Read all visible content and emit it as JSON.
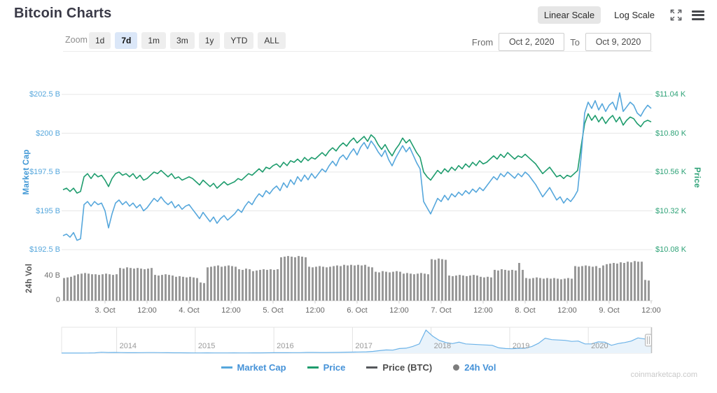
{
  "header": {
    "title": "Bitcoin Charts",
    "linear_scale_label": "Linear Scale",
    "log_scale_label": "Log Scale",
    "icons": [
      {
        "name": "fullscreen-icon"
      },
      {
        "name": "menu-icon"
      }
    ]
  },
  "toolbar": {
    "zoom_label": "Zoom",
    "ranges": [
      {
        "label": "1d",
        "active": false
      },
      {
        "label": "7d",
        "active": true
      },
      {
        "label": "1m",
        "active": false
      },
      {
        "label": "3m",
        "active": false
      },
      {
        "label": "1y",
        "active": false
      },
      {
        "label": "YTD",
        "active": false
      },
      {
        "label": "ALL",
        "active": false
      }
    ],
    "from_label": "From",
    "from_value": "Oct 2, 2020",
    "to_label": "To",
    "to_value": "Oct 9, 2020"
  },
  "legend": {
    "items": [
      {
        "label": "Market Cap",
        "type": "line",
        "color": "#56a7dc",
        "label_color": "#4592d8"
      },
      {
        "label": "Price",
        "type": "line",
        "color": "#1e9c6d",
        "label_color": "#4592d8"
      },
      {
        "label": "Price (BTC)",
        "type": "line",
        "color": "#55575b",
        "label_color": "#4d4d4d"
      },
      {
        "label": "24h Vol",
        "type": "dot",
        "color": "#7d7d7d",
        "label_color": "#4592d8"
      }
    ]
  },
  "watermark": "coinmarketcap.com",
  "chart_data": {
    "type": "line",
    "title": "Bitcoin Charts",
    "x_range": [
      "Oct 2, 2020",
      "Oct 9, 2020"
    ],
    "axes": {
      "market_cap": {
        "title": "Market Cap",
        "tick_labels": [
          "$202.5 B",
          "$200 B",
          "$197.5 B",
          "$195 B",
          "$192.5 B"
        ],
        "tick_values": [
          202.5,
          200,
          197.5,
          195,
          192.5
        ]
      },
      "price": {
        "title": "Price",
        "tick_labels": [
          "$11.04 K",
          "$10.80 K",
          "$10.56 K",
          "$10.32 K",
          "$10.08 K"
        ],
        "tick_values": [
          11.04,
          10.8,
          10.56,
          10.32,
          10.08
        ]
      },
      "volume": {
        "title": "24h Vol",
        "tick_labels": [
          "40 B",
          "0"
        ],
        "tick_values": [
          40,
          0
        ]
      },
      "x": {
        "tick_labels": [
          "3. Oct",
          "12:00",
          "4. Oct",
          "12:00",
          "5. Oct",
          "12:00",
          "6. Oct",
          "12:00",
          "7. Oct",
          "12:00",
          "8. Oct",
          "12:00",
          "9. Oct",
          "12:00"
        ]
      }
    },
    "series": [
      {
        "name": "Market Cap",
        "unit": "$B",
        "color": "#56a7dc",
        "values": [
          193.4,
          193.5,
          193.3,
          193.6,
          193.1,
          193.2,
          195.4,
          195.6,
          195.3,
          195.6,
          195.4,
          195.5,
          195.0,
          193.9,
          194.8,
          195.5,
          195.7,
          195.4,
          195.6,
          195.3,
          195.5,
          195.2,
          195.4,
          195.0,
          195.2,
          195.5,
          195.8,
          195.6,
          195.9,
          195.6,
          195.4,
          195.6,
          195.2,
          195.4,
          195.1,
          195.3,
          195.4,
          195.1,
          194.8,
          194.5,
          194.9,
          194.6,
          194.3,
          194.6,
          194.2,
          194.5,
          194.7,
          194.4,
          194.6,
          194.8,
          195.1,
          194.9,
          195.3,
          195.6,
          195.4,
          195.8,
          196.1,
          195.9,
          196.3,
          196.1,
          196.4,
          196.6,
          196.3,
          196.8,
          196.5,
          197.0,
          196.7,
          197.2,
          196.9,
          197.3,
          197.0,
          197.4,
          197.1,
          197.4,
          197.7,
          197.5,
          197.9,
          198.2,
          197.9,
          198.4,
          198.6,
          198.3,
          198.7,
          199.0,
          198.6,
          199.1,
          199.4,
          199.0,
          199.5,
          199.2,
          198.8,
          198.5,
          198.9,
          198.3,
          197.9,
          198.4,
          198.8,
          199.2,
          198.8,
          199.1,
          198.6,
          198.1,
          197.7,
          195.6,
          195.2,
          194.8,
          195.3,
          195.8,
          195.6,
          196.0,
          195.7,
          196.1,
          195.9,
          196.2,
          196.0,
          196.3,
          196.1,
          196.4,
          196.2,
          196.5,
          196.3,
          196.6,
          196.9,
          197.2,
          197.0,
          197.4,
          197.2,
          197.5,
          197.3,
          197.1,
          197.4,
          197.2,
          197.5,
          197.3,
          197.0,
          196.7,
          196.3,
          195.9,
          196.2,
          196.5,
          196.1,
          195.7,
          195.9,
          195.5,
          195.8,
          195.6,
          195.9,
          196.3,
          198.5,
          201.3,
          202.0,
          201.6,
          202.1,
          201.5,
          201.9,
          201.4,
          201.8,
          202.0,
          201.5,
          202.6,
          201.4,
          201.7,
          202.0,
          201.8,
          201.3,
          201.1,
          201.5,
          201.8,
          201.6
        ]
      },
      {
        "name": "Price",
        "unit": "$K",
        "color": "#1e9c6d",
        "values": [
          10.45,
          10.46,
          10.44,
          10.46,
          10.43,
          10.44,
          10.53,
          10.55,
          10.52,
          10.55,
          10.53,
          10.54,
          10.51,
          10.47,
          10.52,
          10.55,
          10.56,
          10.54,
          10.55,
          10.53,
          10.55,
          10.52,
          10.54,
          10.51,
          10.52,
          10.54,
          10.56,
          10.55,
          10.57,
          10.55,
          10.53,
          10.55,
          10.52,
          10.53,
          10.51,
          10.52,
          10.53,
          10.52,
          10.5,
          10.48,
          10.51,
          10.49,
          10.47,
          10.49,
          10.46,
          10.48,
          10.5,
          10.48,
          10.49,
          10.5,
          10.52,
          10.51,
          10.53,
          10.55,
          10.54,
          10.56,
          10.58,
          10.56,
          10.59,
          10.58,
          10.6,
          10.61,
          10.59,
          10.62,
          10.6,
          10.63,
          10.62,
          10.64,
          10.62,
          10.65,
          10.63,
          10.65,
          10.64,
          10.66,
          10.68,
          10.66,
          10.69,
          10.71,
          10.69,
          10.72,
          10.74,
          10.72,
          10.75,
          10.77,
          10.74,
          10.76,
          10.78,
          10.75,
          10.79,
          10.77,
          10.73,
          10.7,
          10.73,
          10.69,
          10.66,
          10.7,
          10.73,
          10.77,
          10.74,
          10.76,
          10.72,
          10.68,
          10.65,
          10.56,
          10.53,
          10.51,
          10.54,
          10.57,
          10.55,
          10.58,
          10.56,
          10.59,
          10.57,
          10.6,
          10.58,
          10.61,
          10.59,
          10.62,
          10.6,
          10.63,
          10.61,
          10.62,
          10.64,
          10.66,
          10.64,
          10.67,
          10.65,
          10.68,
          10.66,
          10.64,
          10.66,
          10.65,
          10.67,
          10.65,
          10.63,
          10.61,
          10.58,
          10.55,
          10.57,
          10.59,
          10.56,
          10.53,
          10.54,
          10.52,
          10.54,
          10.53,
          10.55,
          10.57,
          10.72,
          10.86,
          10.92,
          10.88,
          10.91,
          10.87,
          10.9,
          10.86,
          10.89,
          10.91,
          10.87,
          10.9,
          10.85,
          10.88,
          10.9,
          10.89,
          10.86,
          10.84,
          10.87,
          10.88,
          10.87
        ]
      }
    ],
    "volume": {
      "name": "24h Vol",
      "unit": "$B",
      "color": "#999999",
      "values": [
        36,
        37,
        38,
        40,
        42,
        43,
        44,
        43,
        42,
        42,
        41,
        42,
        43,
        42,
        41,
        42,
        52,
        51,
        53,
        52,
        51,
        52,
        51,
        50,
        51,
        52,
        41,
        40,
        41,
        42,
        41,
        40,
        38,
        39,
        38,
        37,
        38,
        37,
        36,
        29,
        28,
        53,
        54,
        55,
        56,
        54,
        55,
        56,
        55,
        54,
        50,
        49,
        51,
        50,
        47,
        48,
        49,
        50,
        49,
        50,
        49,
        50,
        69,
        70,
        71,
        70,
        69,
        71,
        70,
        69,
        54,
        53,
        54,
        55,
        54,
        53,
        54,
        55,
        56,
        55,
        57,
        56,
        57,
        56,
        57,
        56,
        57,
        54,
        53,
        46,
        45,
        47,
        46,
        45,
        46,
        47,
        46,
        43,
        44,
        43,
        42,
        43,
        44,
        43,
        42,
        66,
        65,
        67,
        66,
        65,
        40,
        39,
        40,
        41,
        40,
        39,
        40,
        41,
        40,
        38,
        37,
        38,
        37,
        49,
        48,
        50,
        49,
        48,
        49,
        48,
        60,
        49,
        36,
        35,
        36,
        37,
        36,
        35,
        36,
        35,
        36,
        35,
        34,
        35,
        36,
        35,
        55,
        54,
        55,
        56,
        55,
        54,
        55,
        52,
        56,
        58,
        59,
        60,
        59,
        61,
        60,
        62,
        61,
        63,
        62,
        62,
        33,
        32
      ]
    },
    "navigator": {
      "color": "#6db3e8",
      "fill": "#e9f3fb",
      "years": [
        2014,
        2015,
        2016,
        2017,
        2018,
        2019,
        2020
      ],
      "start_year": 2013.3,
      "end_year": 2020.8,
      "values": [
        1,
        1,
        1,
        1,
        2,
        4,
        13,
        9,
        10,
        8,
        6,
        6,
        7,
        8,
        8,
        7,
        6,
        5,
        5,
        4,
        3,
        3,
        4,
        3,
        3,
        3,
        4,
        3,
        3,
        4,
        4,
        5,
        6,
        6,
        6,
        7,
        7,
        10,
        10,
        9,
        9,
        10,
        11,
        14,
        15,
        17,
        19,
        25,
        35,
        45,
        42,
        65,
        70,
        95,
        130,
        325,
        240,
        180,
        150,
        135,
        155,
        130,
        125,
        120,
        115,
        110,
        75,
        65,
        62,
        68,
        70,
        95,
        140,
        210,
        190,
        185,
        180,
        165,
        170,
        130,
        130,
        160,
        155,
        110,
        135,
        150,
        170,
        215,
        200,
        202
      ]
    }
  }
}
